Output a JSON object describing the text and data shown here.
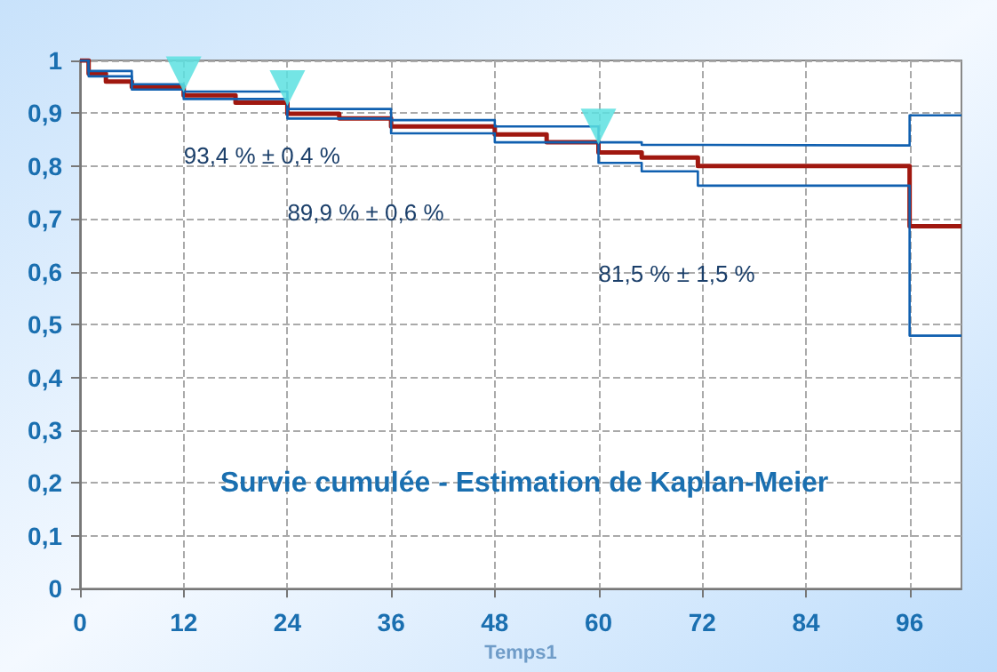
{
  "chart_data": {
    "type": "step",
    "title": "Survie cumulée - Estimation de Kaplan-Meier",
    "xlabel": "Temps1",
    "xlim": [
      0,
      102
    ],
    "ylim": [
      0,
      1
    ],
    "xticks": [
      0,
      12,
      24,
      36,
      48,
      60,
      72,
      84,
      96
    ],
    "yticks": [
      0,
      {
        "value": 0.1,
        "label": "0,1"
      },
      {
        "value": 0.2,
        "label": "0,2"
      },
      {
        "value": 0.3,
        "label": "0,3"
      },
      {
        "value": 0.4,
        "label": "0,4"
      },
      {
        "value": 0.5,
        "label": "0,5"
      },
      {
        "value": 0.6,
        "label": "0,6"
      },
      {
        "value": 0.7,
        "label": "0,7"
      },
      {
        "value": 0.8,
        "label": "0,8"
      },
      {
        "value": 0.9,
        "label": "0,9"
      },
      1
    ],
    "grid": true,
    "series": [
      {
        "color": "#a01810",
        "x": [
          0,
          1,
          3,
          6,
          12,
          18,
          24,
          30,
          36,
          48,
          54,
          60,
          65,
          71.5,
          96,
          102
        ],
        "values": [
          1,
          0.975,
          0.96,
          0.95,
          0.934,
          0.92,
          0.899,
          0.89,
          0.875,
          0.86,
          0.845,
          0.826,
          0.816,
          0.8,
          0.686,
          0.686
        ]
      },
      {
        "color": "#1060b0",
        "x": [
          0,
          1,
          6,
          12,
          24,
          36,
          48,
          60,
          65,
          71.5,
          96,
          102
        ],
        "values": [
          1,
          0.98,
          0.955,
          0.941,
          0.908,
          0.887,
          0.875,
          0.845,
          0.84,
          0.839,
          0.896,
          0.896
        ]
      },
      {
        "color": "#1060b0",
        "x": [
          0,
          1,
          6,
          12,
          24,
          36,
          48,
          60,
          65,
          71.5,
          96,
          102
        ],
        "values": [
          1,
          0.97,
          0.945,
          0.927,
          0.89,
          0.862,
          0.845,
          0.806,
          0.79,
          0.763,
          0.479,
          0.479
        ]
      },
      {
        "type": "scatter",
        "marker": "triangle",
        "color": "#5ce0e0",
        "x": [
          12,
          24,
          60
        ],
        "values": [
          0.974,
          0.948,
          0.875
        ]
      }
    ],
    "annotations": [
      "93,4 % ± 0,4 %",
      "89,9 % ± 0,6 %",
      "81,5 % ± 1,5 %"
    ]
  }
}
